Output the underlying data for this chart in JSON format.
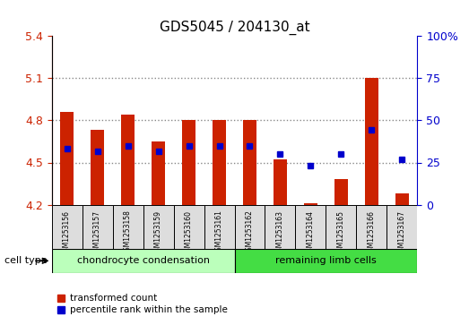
{
  "title": "GDS5045 / 204130_at",
  "samples": [
    "GSM1253156",
    "GSM1253157",
    "GSM1253158",
    "GSM1253159",
    "GSM1253160",
    "GSM1253161",
    "GSM1253162",
    "GSM1253163",
    "GSM1253164",
    "GSM1253165",
    "GSM1253166",
    "GSM1253167"
  ],
  "bar_bottoms": [
    4.2,
    4.2,
    4.2,
    4.2,
    4.2,
    4.2,
    4.2,
    4.2,
    4.2,
    4.2,
    4.2,
    4.2
  ],
  "bar_tops": [
    4.86,
    4.73,
    4.84,
    4.65,
    4.8,
    4.8,
    4.8,
    4.52,
    4.21,
    4.38,
    5.1,
    4.28
  ],
  "percentile_values": [
    4.6,
    4.58,
    4.62,
    4.58,
    4.62,
    4.62,
    4.62,
    4.56,
    4.48,
    4.56,
    4.73,
    4.52
  ],
  "ylim_left": [
    4.2,
    5.4
  ],
  "ylim_right": [
    0,
    100
  ],
  "yticks_left": [
    4.2,
    4.5,
    4.8,
    5.1,
    5.4
  ],
  "ytick_labels_left": [
    "4.2",
    "4.5",
    "4.8",
    "5.1",
    "5.4"
  ],
  "yticks_right": [
    0,
    25,
    50,
    75,
    100
  ],
  "ytick_labels_right": [
    "0",
    "25",
    "50",
    "75",
    "100%"
  ],
  "hlines": [
    4.5,
    4.8,
    5.1
  ],
  "bar_color": "#cc2200",
  "dot_color": "#0000cc",
  "group1_label": "chondrocyte condensation",
  "group2_label": "remaining limb cells",
  "group1_color": "#bbffbb",
  "group2_color": "#44dd44",
  "cell_type_label": "cell type",
  "legend1": "transformed count",
  "legend2": "percentile rank within the sample",
  "tick_label_color_left": "#cc2200",
  "tick_label_color_right": "#0000cc",
  "grid_color": "#888888",
  "group1_count": 6,
  "group2_count": 6
}
